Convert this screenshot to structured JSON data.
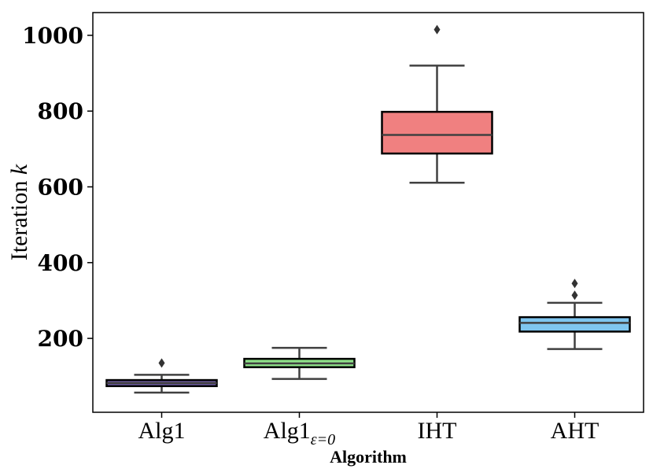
{
  "chart_data": {
    "type": "box",
    "xlabel": "Algorithm",
    "ylabel_text": "Iteration",
    "ylabel_var": "k",
    "ylim": [
      5,
      1060
    ],
    "yticks": [
      200,
      400,
      600,
      800,
      1000
    ],
    "categories": [
      {
        "name": "Alg1",
        "sub": ""
      },
      {
        "name": "Alg1",
        "sub": "ε=0"
      },
      {
        "name": "IHT",
        "sub": ""
      },
      {
        "name": "AHT",
        "sub": ""
      }
    ],
    "boxes": [
      {
        "whislo": 57,
        "q1": 74,
        "med": 82,
        "q3": 90,
        "whishi": 104,
        "fliers": [
          135
        ],
        "color": "#6f5ca6"
      },
      {
        "whislo": 93,
        "q1": 124,
        "med": 134,
        "q3": 146,
        "whishi": 175,
        "fliers": [],
        "color": "#8fe28a"
      },
      {
        "whislo": 611,
        "q1": 688,
        "med": 737,
        "q3": 798,
        "whishi": 920,
        "fliers": [
          1015
        ],
        "color": "#f08080"
      },
      {
        "whislo": 172,
        "q1": 218,
        "med": 241,
        "q3": 256,
        "whishi": 294,
        "fliers": [
          314,
          345
        ],
        "color": "#7fc6f0"
      }
    ]
  }
}
